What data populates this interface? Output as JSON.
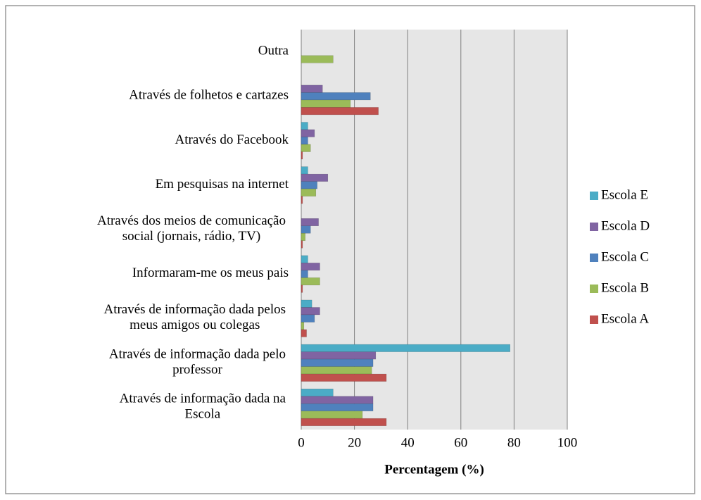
{
  "chart_data": {
    "type": "barh",
    "x_label": "Percentagem (%)",
    "categories": [
      "Outra",
      "Através de folhetos e cartazes",
      "Através do Facebook",
      "Em pesquisas na internet",
      "Através dos meios de comunicação\nsocial (jornais, rádio, TV)",
      "Informaram-me os meus pais",
      "Através de informação dada pelos\nmeus amigos ou colegas",
      "Através de informação dada pelo\nprofessor",
      "Através de informação dada na\nEscola"
    ],
    "series": [
      {
        "name": "Escola E",
        "color": "#4bacc6",
        "values": [
          0,
          0,
          2.5,
          2.5,
          0,
          2.5,
          4,
          78.5,
          12
        ]
      },
      {
        "name": "Escola D",
        "color": "#8064a2",
        "values": [
          0,
          8,
          5,
          10,
          6.5,
          7,
          7,
          28,
          27
        ]
      },
      {
        "name": "Escola C",
        "color": "#4f81bd",
        "values": [
          0,
          26,
          2.5,
          6,
          3.5,
          2.5,
          5,
          27,
          27
        ]
      },
      {
        "name": "Escola B",
        "color": "#9bbb59",
        "values": [
          12,
          18.5,
          3.5,
          5.5,
          1.5,
          7,
          1,
          26.5,
          23
        ]
      },
      {
        "name": "Escola A",
        "color": "#c0504d",
        "values": [
          0,
          29,
          0.5,
          0.5,
          0.5,
          0.5,
          2,
          32,
          32
        ]
      }
    ],
    "xlim": [
      0,
      100
    ],
    "xticks": [
      0,
      20,
      40,
      60,
      80,
      100
    ],
    "grid": true,
    "legend": "right"
  }
}
